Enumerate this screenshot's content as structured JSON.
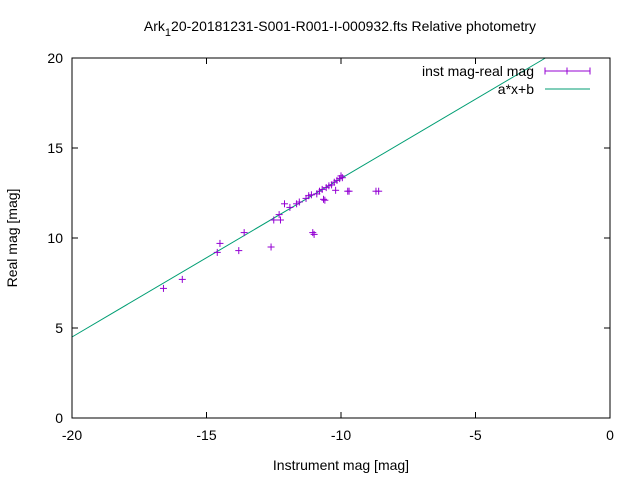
{
  "chart_data": {
    "type": "scatter",
    "title": {
      "prefix": "Ark",
      "subscript": "1",
      "suffix": "20-20181231-S001-R001-I-000932.fts Relative photometry"
    },
    "xlabel": "Instrument mag [mag]",
    "ylabel": "Real mag [mag]",
    "xlim": [
      -20,
      0
    ],
    "ylim": [
      0,
      20
    ],
    "xticks": [
      -20,
      -15,
      -10,
      -5,
      0
    ],
    "yticks": [
      0,
      5,
      10,
      15,
      20
    ],
    "grid": false,
    "legend_position": "top-right",
    "series": [
      {
        "name": "inst mag-real mag",
        "kind": "points",
        "marker": "plus",
        "color": "#9400d3",
        "points": [
          [
            -16.6,
            7.2
          ],
          [
            -15.9,
            7.7
          ],
          [
            -14.6,
            9.2
          ],
          [
            -14.5,
            9.7
          ],
          [
            -13.8,
            9.3
          ],
          [
            -13.6,
            10.3
          ],
          [
            -12.6,
            9.5
          ],
          [
            -12.5,
            11.0
          ],
          [
            -12.3,
            11.3
          ],
          [
            -12.25,
            11.0
          ],
          [
            -12.1,
            11.9
          ],
          [
            -11.9,
            11.7
          ],
          [
            -11.65,
            11.9
          ],
          [
            -11.55,
            12.0
          ],
          [
            -11.3,
            12.2
          ],
          [
            -11.2,
            12.35
          ],
          [
            -11.1,
            12.4
          ],
          [
            -11.05,
            10.3
          ],
          [
            -11.0,
            10.2
          ],
          [
            -10.9,
            12.45
          ],
          [
            -10.8,
            12.6
          ],
          [
            -10.7,
            12.7
          ],
          [
            -10.65,
            12.15
          ],
          [
            -10.6,
            12.1
          ],
          [
            -10.55,
            12.8
          ],
          [
            -10.45,
            12.9
          ],
          [
            -10.35,
            12.95
          ],
          [
            -10.25,
            13.1
          ],
          [
            -10.2,
            12.65
          ],
          [
            -10.15,
            13.2
          ],
          [
            -10.05,
            13.3
          ],
          [
            -10.0,
            13.45
          ],
          [
            -9.95,
            13.35
          ],
          [
            -9.75,
            12.6
          ],
          [
            -9.7,
            12.6
          ],
          [
            -8.7,
            12.6
          ],
          [
            -8.6,
            12.6
          ]
        ]
      },
      {
        "name": "a*x+b",
        "kind": "line",
        "color": "#009e73",
        "points": [
          [
            -20,
            4.5
          ],
          [
            -2.4,
            20
          ]
        ]
      }
    ]
  }
}
